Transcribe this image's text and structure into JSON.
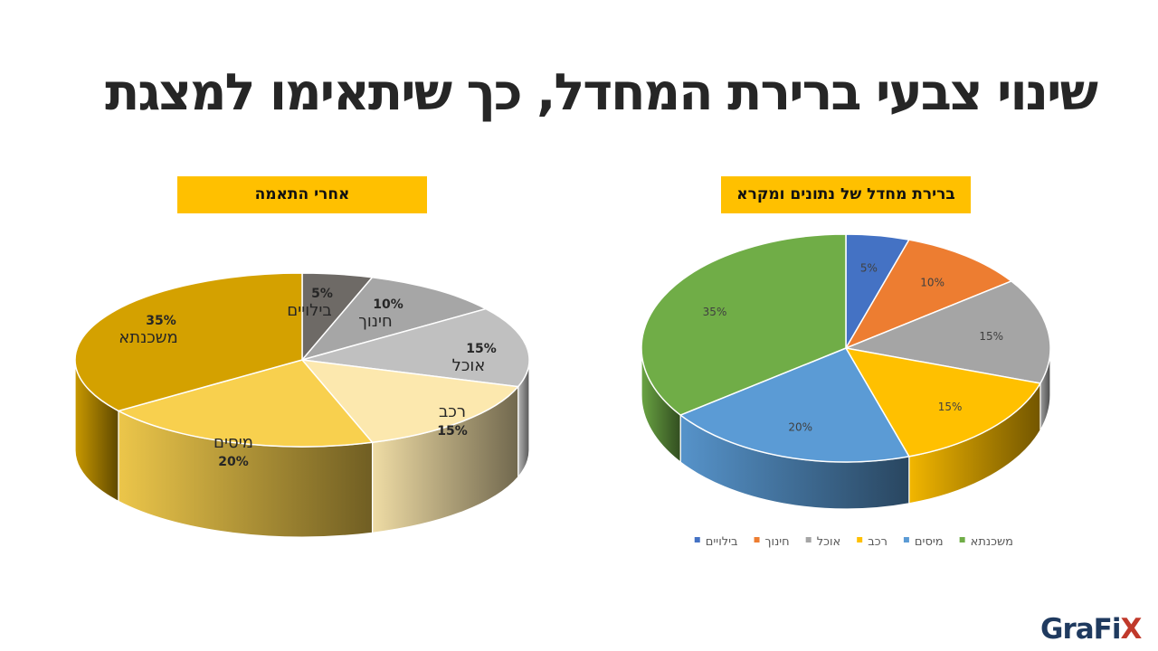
{
  "page": {
    "title": "שינוי צבעי ברירת המחדל, כך שיתאימו למצגת",
    "logo_text": "GraFi",
    "logo_x": "X"
  },
  "panels": {
    "right_label": "ברירת מחדל של נתונים ומקרא",
    "left_label": "אחרי התאמה"
  },
  "chart_data": [
    {
      "type": "pie",
      "title": "",
      "categories": [
        "בילויים",
        "חינוך",
        "אוכל",
        "רכב",
        "מיסים",
        "משכנתא"
      ],
      "values": [
        5,
        10,
        15,
        15,
        20,
        35
      ],
      "value_labels": [
        "5%",
        "10%",
        "15%",
        "15%",
        "20%",
        "35%"
      ],
      "colors": [
        "#4472c4",
        "#ed7d31",
        "#a5a5a5",
        "#ffc000",
        "#5b9bd5",
        "#70ad47"
      ],
      "legend": "bottom",
      "style": "3d"
    },
    {
      "type": "pie",
      "title": "",
      "categories": [
        "בילויים",
        "חינוך",
        "אוכל",
        "רכב",
        "מיסים",
        "משכנתא"
      ],
      "values": [
        5,
        10,
        15,
        15,
        20,
        35
      ],
      "value_labels": [
        "5%",
        "10%",
        "15%",
        "15%",
        "20%",
        "35%"
      ],
      "colors": [
        "#6e6a66",
        "#a6a6a6",
        "#c0c0c0",
        "#fce8ae",
        "#f8d04e",
        "#d4a100"
      ],
      "legend": "none",
      "labels": "category and value",
      "style": "3d"
    }
  ]
}
